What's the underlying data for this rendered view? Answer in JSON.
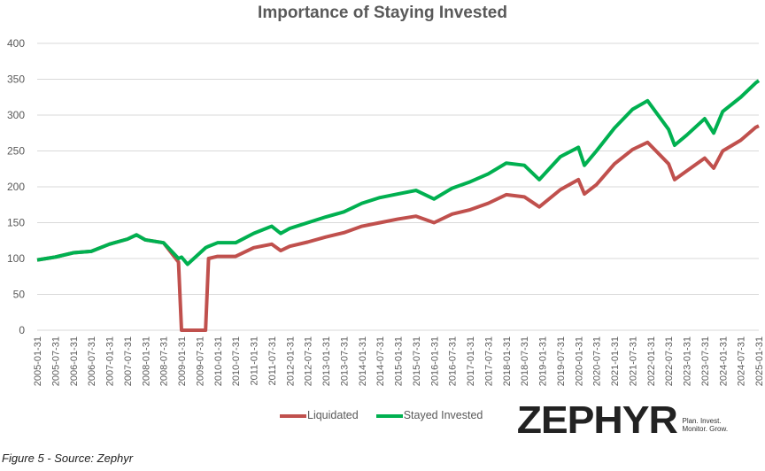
{
  "chart_data": {
    "type": "line",
    "title": "Importance of Staying Invested",
    "ylim": [
      0,
      400
    ],
    "yticks": [
      0,
      50,
      100,
      150,
      200,
      250,
      300,
      350,
      400
    ],
    "grid": true,
    "legend": "bottom",
    "xticks": [
      "2005-01-31",
      "2005-07-31",
      "2006-01-31",
      "2006-07-31",
      "2007-01-31",
      "2007-07-31",
      "2008-01-31",
      "2008-07-31",
      "2009-01-31",
      "2009-07-31",
      "2010-01-31",
      "2010-07-31",
      "2011-01-31",
      "2011-07-31",
      "2012-01-31",
      "2012-07-31",
      "2013-01-31",
      "2013-07-31",
      "2014-01-31",
      "2014-07-31",
      "2015-01-31",
      "2015-07-31",
      "2016-01-31",
      "2016-07-31",
      "2017-01-31",
      "2017-07-31",
      "2018-01-31",
      "2018-07-31",
      "2019-01-31",
      "2019-07-31",
      "2020-01-31",
      "2020-07-31",
      "2021-01-31",
      "2021-07-31",
      "2022-01-31",
      "2022-07-31",
      "2023-01-31",
      "2023-07-31",
      "2024-01-31",
      "2024-07-31",
      "2025-01-31"
    ],
    "x": [
      "2005-01",
      "2005-07",
      "2006-01",
      "2006-07",
      "2007-01",
      "2007-07",
      "2007-10",
      "2008-01",
      "2008-07",
      "2008-12",
      "2009-01",
      "2009-03",
      "2009-09",
      "2009-10",
      "2010-01",
      "2010-07",
      "2011-01",
      "2011-07",
      "2011-10",
      "2012-01",
      "2012-07",
      "2013-01",
      "2013-07",
      "2014-01",
      "2014-07",
      "2015-01",
      "2015-07",
      "2016-01",
      "2016-07",
      "2017-01",
      "2017-07",
      "2018-01",
      "2018-07",
      "2018-12",
      "2019-07",
      "2020-01",
      "2020-03",
      "2020-07",
      "2021-01",
      "2021-07",
      "2021-12",
      "2022-07",
      "2022-09",
      "2023-01",
      "2023-07",
      "2023-10",
      "2024-01",
      "2024-07",
      "2024-12",
      "2025-01"
    ],
    "series": [
      {
        "name": "Liquidated",
        "color": "#C0504D",
        "values": [
          98,
          102,
          108,
          110,
          120,
          127,
          133,
          126,
          122,
          95,
          0,
          0,
          0,
          100,
          103,
          103,
          115,
          120,
          111,
          117,
          123,
          130,
          136,
          145,
          150,
          155,
          159,
          150,
          162,
          168,
          177,
          189,
          186,
          172,
          196,
          210,
          190,
          203,
          232,
          252,
          262,
          232,
          210,
          222,
          240,
          226,
          250,
          265,
          283,
          285
        ]
      },
      {
        "name": "Stayed Invested",
        "color": "#00B050",
        "values": [
          98,
          102,
          108,
          110,
          120,
          127,
          133,
          126,
          122,
          100,
          102,
          92,
          115,
          117,
          122,
          122,
          135,
          145,
          135,
          142,
          150,
          158,
          165,
          177,
          185,
          190,
          195,
          183,
          198,
          207,
          218,
          233,
          230,
          210,
          242,
          255,
          230,
          250,
          282,
          308,
          320,
          280,
          258,
          272,
          295,
          275,
          305,
          325,
          345,
          348
        ]
      }
    ]
  },
  "logo": {
    "word": "ZEPHYR",
    "tagline1": "Plan. Invest.",
    "tagline2": "Monitor. Grow."
  },
  "caption": "Figure 5 - Source: Zephyr"
}
